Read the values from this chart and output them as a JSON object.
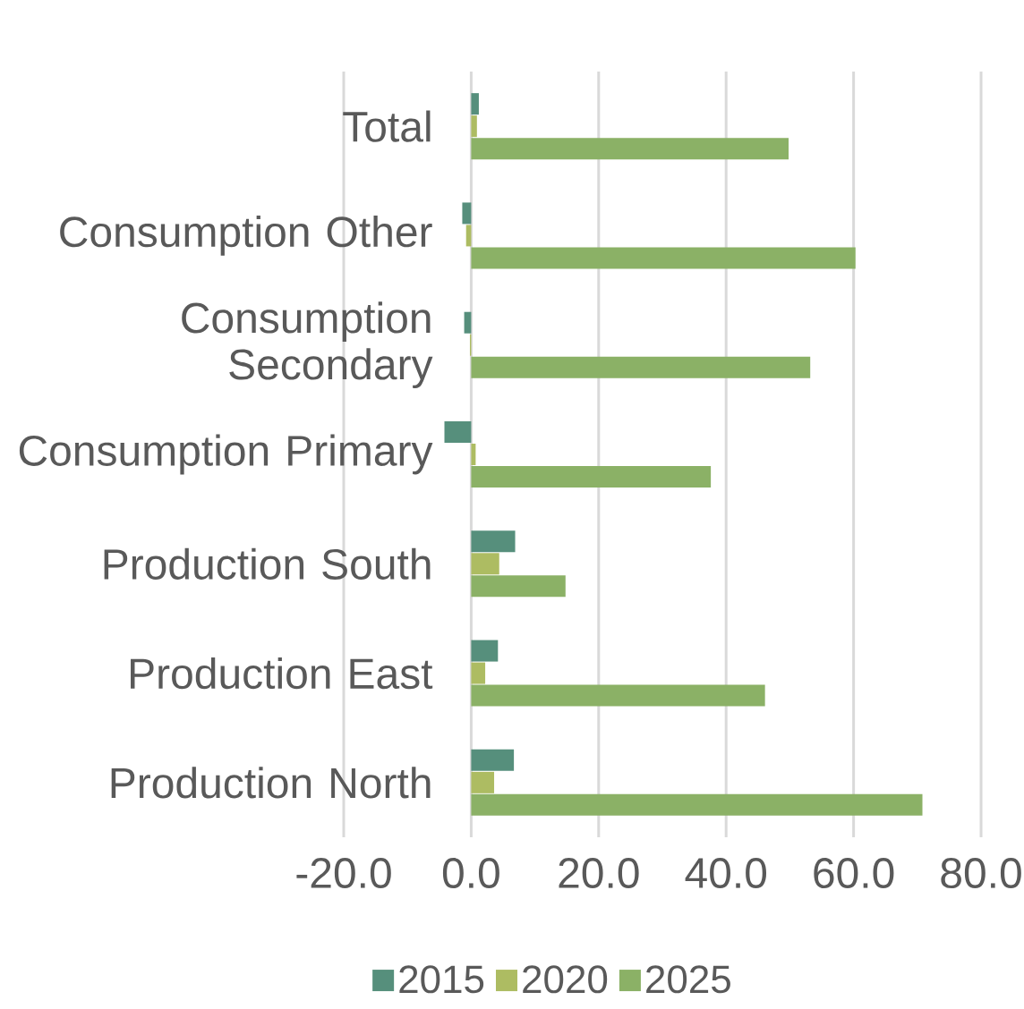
{
  "chart_data": {
    "type": "bar",
    "orientation": "horizontal",
    "categories": [
      "Total",
      "Consumption Other",
      "Consumption Secondary",
      "Consumption Primary",
      "Production South",
      "Production East",
      "Production North"
    ],
    "series": [
      {
        "name": "2015",
        "color": "#568f7c",
        "values": [
          1.2,
          -1.4,
          -1.1,
          -4.2,
          6.9,
          4.2,
          6.7
        ]
      },
      {
        "name": "2020",
        "color": "#adbc62",
        "values": [
          0.9,
          -0.8,
          -0.2,
          0.7,
          4.4,
          2.2,
          3.6
        ]
      },
      {
        "name": "2025",
        "color": "#8bb166",
        "values": [
          49.8,
          60.3,
          53.2,
          37.6,
          14.8,
          46.1,
          70.8
        ]
      }
    ],
    "xlim": [
      -20,
      80
    ],
    "xticks": [
      {
        "value": -20,
        "label": "-20.0"
      },
      {
        "value": 0,
        "label": "0.0"
      },
      {
        "value": 20,
        "label": "20.0"
      },
      {
        "value": 40,
        "label": "40.0"
      },
      {
        "value": 60,
        "label": "60.0"
      },
      {
        "value": 80,
        "label": "80.0"
      }
    ],
    "grid": "x",
    "legend": "bottom"
  }
}
